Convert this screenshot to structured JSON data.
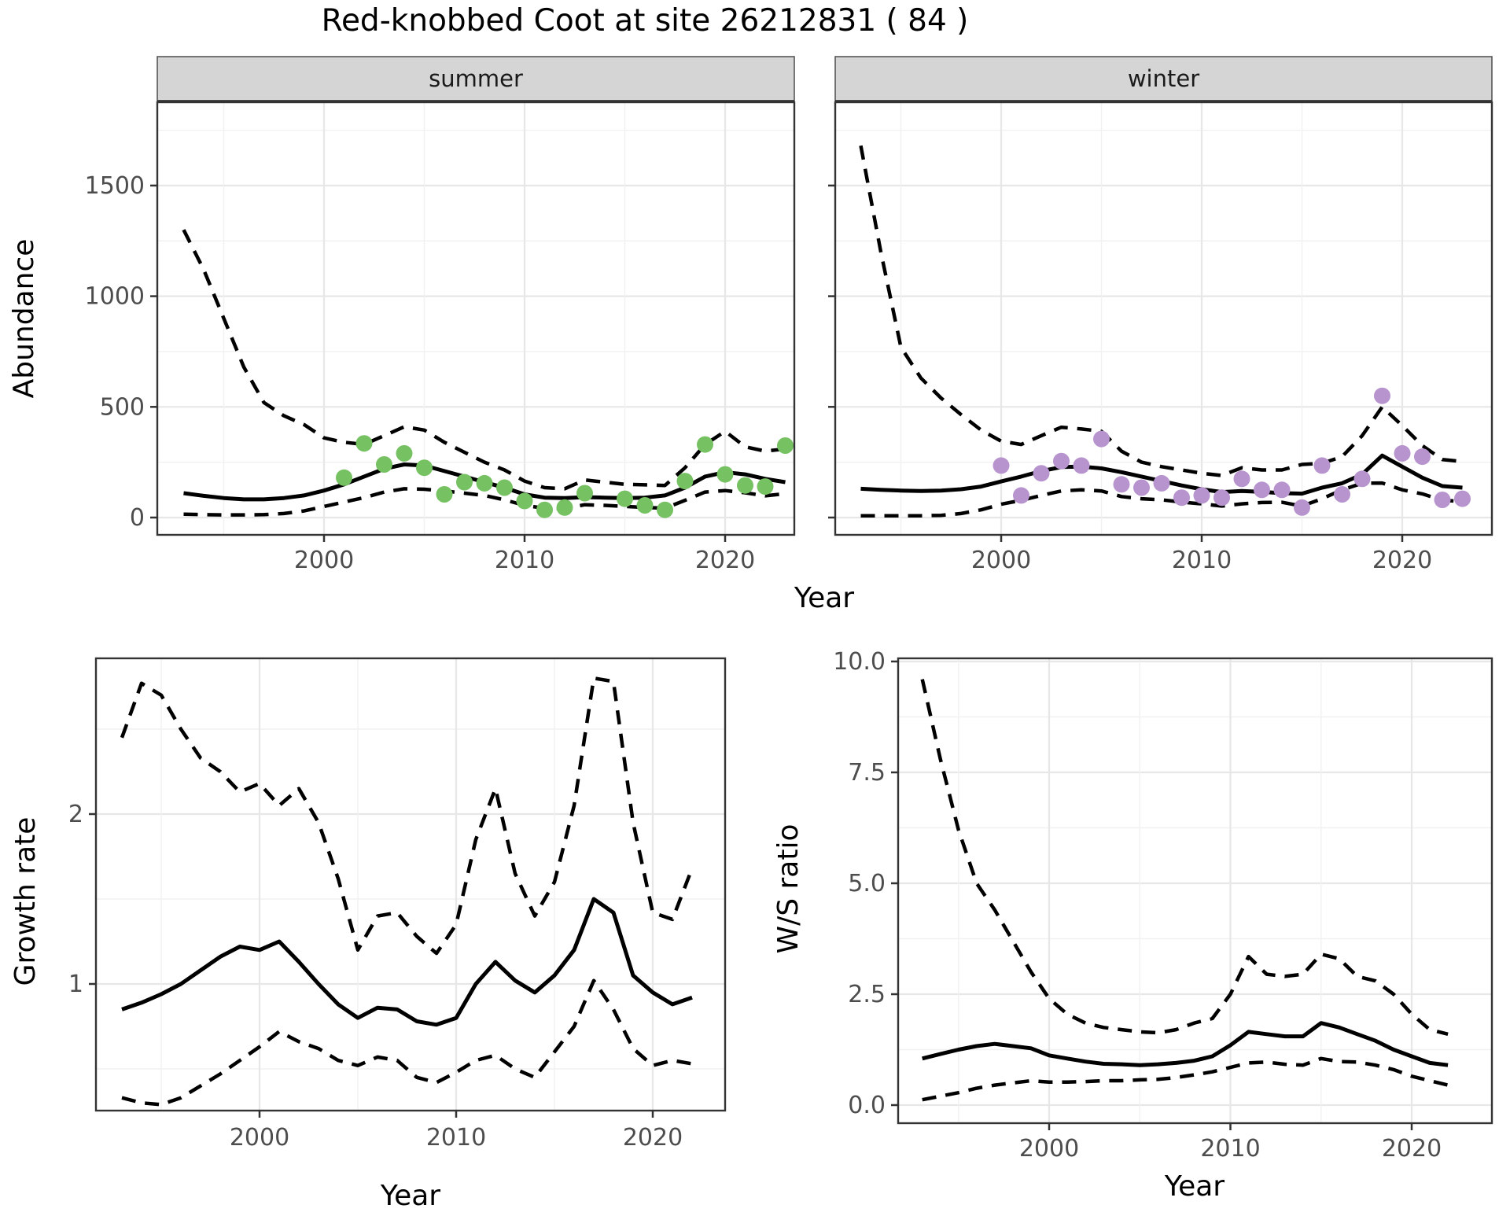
{
  "title": "Red-knobbed Coot at site 26212831 ( 84 )",
  "colors": {
    "summer_point": "#76c161",
    "winter_point": "#b794ce",
    "line": "#000000",
    "grid_major": "#e7e7e7",
    "grid_minor": "#f1f1f1",
    "strip_bg": "#d5d5d5",
    "panel_border": "#333333",
    "tick_text": "#4d4d4d"
  },
  "axis_labels": {
    "y_top": "Abundance",
    "x": "Year",
    "y_growth": "Growth rate",
    "y_ws": "W/S ratio"
  },
  "chart_data": [
    {
      "id": "abundance_summer",
      "type": "line",
      "facet_label": "summer",
      "ylabel": "Abundance",
      "xlabel": "Year",
      "x": [
        1993,
        1994,
        1995,
        1996,
        1997,
        1998,
        1999,
        2000,
        2001,
        2002,
        2003,
        2004,
        2005,
        2006,
        2007,
        2008,
        2009,
        2010,
        2011,
        2012,
        2013,
        2014,
        2015,
        2016,
        2017,
        2018,
        2019,
        2020,
        2021,
        2022,
        2023
      ],
      "series": [
        {
          "name": "fit",
          "linetype": "solid",
          "values": [
            110,
            98,
            88,
            82,
            82,
            88,
            100,
            122,
            150,
            185,
            220,
            240,
            235,
            210,
            185,
            160,
            135,
            105,
            90,
            88,
            92,
            90,
            88,
            90,
            100,
            135,
            185,
            205,
            195,
            175,
            160
          ]
        },
        {
          "name": "upper_ci",
          "linetype": "dashed",
          "values": [
            1300,
            1120,
            900,
            680,
            520,
            460,
            420,
            360,
            340,
            330,
            370,
            410,
            395,
            340,
            295,
            250,
            215,
            165,
            135,
            130,
            170,
            160,
            150,
            148,
            145,
            225,
            330,
            390,
            320,
            300,
            310
          ]
        },
        {
          "name": "lower_ci",
          "linetype": "dashed",
          "values": [
            15,
            13,
            12,
            12,
            13,
            18,
            30,
            50,
            70,
            90,
            115,
            130,
            128,
            120,
            110,
            100,
            80,
            55,
            42,
            40,
            58,
            55,
            50,
            46,
            42,
            78,
            115,
            122,
            112,
            98,
            108
          ]
        }
      ],
      "points": {
        "name": "observed",
        "x": [
          2001,
          2002,
          2003,
          2004,
          2005,
          2006,
          2007,
          2008,
          2009,
          2010,
          2011,
          2012,
          2013,
          2015,
          2016,
          2017,
          2018,
          2019,
          2020,
          2021,
          2022,
          2023
        ],
        "y": [
          180,
          335,
          240,
          290,
          225,
          105,
          160,
          155,
          135,
          75,
          35,
          45,
          110,
          85,
          55,
          35,
          165,
          330,
          195,
          145,
          140,
          325
        ]
      },
      "xticks": [
        2000,
        2010,
        2020
      ],
      "yticks": [
        0,
        500,
        1000,
        1500
      ],
      "ytick_labels": [
        "0",
        "500",
        "1000",
        "1500"
      ],
      "xlim": [
        1991.6,
        2024.3
      ],
      "ylim": [
        -80,
        1870
      ],
      "grid": true,
      "legend": "none"
    },
    {
      "id": "abundance_winter",
      "type": "line",
      "facet_label": "winter",
      "ylabel": "Abundance",
      "xlabel": "Year",
      "x": [
        1993,
        1994,
        1995,
        1996,
        1997,
        1998,
        1999,
        2000,
        2001,
        2002,
        2003,
        2004,
        2005,
        2006,
        2007,
        2008,
        2009,
        2010,
        2011,
        2012,
        2013,
        2014,
        2015,
        2016,
        2017,
        2018,
        2019,
        2020,
        2021,
        2022,
        2023
      ],
      "series": [
        {
          "name": "fit",
          "linetype": "solid",
          "values": [
            130,
            125,
            122,
            120,
            122,
            128,
            140,
            163,
            185,
            210,
            228,
            230,
            222,
            205,
            185,
            165,
            145,
            128,
            115,
            120,
            116,
            110,
            108,
            135,
            155,
            195,
            280,
            230,
            180,
            142,
            135
          ]
        },
        {
          "name": "upper_ci",
          "linetype": "dashed",
          "values": [
            1680,
            1200,
            770,
            630,
            540,
            465,
            395,
            345,
            330,
            370,
            408,
            400,
            390,
            300,
            250,
            230,
            215,
            200,
            190,
            225,
            215,
            215,
            240,
            245,
            275,
            370,
            500,
            415,
            325,
            262,
            253
          ]
        },
        {
          "name": "lower_ci",
          "linetype": "dashed",
          "values": [
            8,
            8,
            8,
            8,
            10,
            18,
            35,
            60,
            78,
            100,
            120,
            125,
            120,
            95,
            85,
            80,
            70,
            62,
            52,
            62,
            68,
            69,
            52,
            85,
            125,
            155,
            156,
            125,
            107,
            78,
            73
          ]
        }
      ],
      "points": {
        "name": "observed",
        "x": [
          2000,
          2001,
          2002,
          2003,
          2004,
          2005,
          2006,
          2007,
          2008,
          2009,
          2010,
          2011,
          2012,
          2013,
          2014,
          2015,
          2016,
          2017,
          2018,
          2019,
          2020,
          2021,
          2022,
          2023
        ],
        "y": [
          235,
          100,
          200,
          255,
          235,
          355,
          150,
          135,
          155,
          90,
          100,
          90,
          175,
          125,
          125,
          45,
          235,
          105,
          175,
          550,
          290,
          275,
          80,
          85
        ]
      },
      "xticks": [
        2000,
        2010,
        2020
      ],
      "yticks": [
        0,
        500,
        1000,
        1500
      ],
      "ytick_labels": [
        "",
        "",
        "",
        ""
      ],
      "xlim": [
        1991.6,
        2024.5
      ],
      "ylim": [
        -80,
        1870
      ],
      "grid": true,
      "legend": "none"
    },
    {
      "id": "growth_rate",
      "type": "line",
      "facet_label": "",
      "ylabel": "Growth rate",
      "xlabel": "Year",
      "x": [
        1993,
        1994,
        1995,
        1996,
        1997,
        1998,
        1999,
        2000,
        2001,
        2002,
        2003,
        2004,
        2005,
        2006,
        2007,
        2008,
        2009,
        2010,
        2011,
        2012,
        2013,
        2014,
        2015,
        2016,
        2017,
        2018,
        2019,
        2020,
        2021,
        2022
      ],
      "series": [
        {
          "name": "fit",
          "linetype": "solid",
          "values": [
            0.85,
            0.89,
            0.94,
            1.0,
            1.08,
            1.16,
            1.22,
            1.2,
            1.25,
            1.13,
            1.0,
            0.88,
            0.8,
            0.86,
            0.85,
            0.78,
            0.76,
            0.8,
            1.0,
            1.13,
            1.02,
            0.95,
            1.05,
            1.2,
            1.5,
            1.42,
            1.05,
            0.95,
            0.88,
            0.92
          ]
        },
        {
          "name": "upper_ci",
          "linetype": "dashed",
          "values": [
            2.45,
            2.77,
            2.7,
            2.5,
            2.33,
            2.25,
            2.13,
            2.18,
            2.05,
            2.15,
            1.95,
            1.62,
            1.2,
            1.4,
            1.42,
            1.28,
            1.18,
            1.35,
            1.85,
            2.15,
            1.65,
            1.4,
            1.6,
            2.05,
            2.8,
            2.78,
            1.95,
            1.42,
            1.38,
            1.68
          ]
        },
        {
          "name": "lower_ci",
          "linetype": "dashed",
          "values": [
            0.33,
            0.3,
            0.29,
            0.33,
            0.4,
            0.47,
            0.55,
            0.63,
            0.72,
            0.66,
            0.62,
            0.55,
            0.52,
            0.57,
            0.55,
            0.45,
            0.42,
            0.48,
            0.55,
            0.58,
            0.5,
            0.45,
            0.6,
            0.75,
            1.02,
            0.85,
            0.62,
            0.52,
            0.55,
            0.53
          ]
        }
      ],
      "points": null,
      "xticks": [
        2000,
        2010,
        2020
      ],
      "yticks": [
        1,
        2
      ],
      "ytick_labels": [
        "1",
        "2"
      ],
      "xlim": [
        1991.7,
        2023.7
      ],
      "ylim": [
        0.25,
        2.92
      ],
      "grid": true,
      "legend": "none"
    },
    {
      "id": "ws_ratio",
      "type": "line",
      "facet_label": "",
      "ylabel": "W/S ratio",
      "xlabel": "Year",
      "x": [
        1993,
        1994,
        1995,
        1996,
        1997,
        1998,
        1999,
        2000,
        2001,
        2002,
        2003,
        2004,
        2005,
        2006,
        2007,
        2008,
        2009,
        2010,
        2011,
        2012,
        2013,
        2014,
        2015,
        2016,
        2017,
        2018,
        2019,
        2020,
        2021,
        2022
      ],
      "series": [
        {
          "name": "fit",
          "linetype": "solid",
          "values": [
            1.05,
            1.15,
            1.25,
            1.33,
            1.38,
            1.33,
            1.28,
            1.12,
            1.05,
            0.98,
            0.93,
            0.92,
            0.9,
            0.92,
            0.95,
            1.0,
            1.1,
            1.35,
            1.65,
            1.6,
            1.55,
            1.55,
            1.85,
            1.75,
            1.6,
            1.45,
            1.25,
            1.1,
            0.95,
            0.9
          ]
        },
        {
          "name": "upper_ci",
          "linetype": "dashed",
          "values": [
            9.6,
            7.8,
            6.2,
            5.0,
            4.4,
            3.7,
            3.0,
            2.4,
            2.05,
            1.85,
            1.75,
            1.7,
            1.65,
            1.63,
            1.7,
            1.85,
            1.95,
            2.5,
            3.35,
            2.95,
            2.9,
            2.95,
            3.4,
            3.3,
            2.9,
            2.8,
            2.5,
            2.05,
            1.7,
            1.6
          ]
        },
        {
          "name": "lower_ci",
          "linetype": "dashed",
          "values": [
            0.12,
            0.2,
            0.28,
            0.38,
            0.45,
            0.5,
            0.55,
            0.52,
            0.52,
            0.53,
            0.55,
            0.55,
            0.57,
            0.58,
            0.62,
            0.68,
            0.75,
            0.85,
            0.95,
            0.97,
            0.92,
            0.9,
            1.05,
            0.98,
            0.97,
            0.9,
            0.8,
            0.65,
            0.55,
            0.45
          ]
        }
      ],
      "points": null,
      "xticks": [
        2000,
        2010,
        2020
      ],
      "yticks": [
        0.0,
        2.5,
        5.0,
        7.5,
        10.0
      ],
      "ytick_labels": [
        "0.0",
        "2.5",
        "5.0",
        "7.5",
        "10.0"
      ],
      "xlim": [
        1991.7,
        2024.4
      ],
      "ylim": [
        -0.37,
        10.05
      ],
      "grid": true,
      "legend": "none"
    }
  ]
}
